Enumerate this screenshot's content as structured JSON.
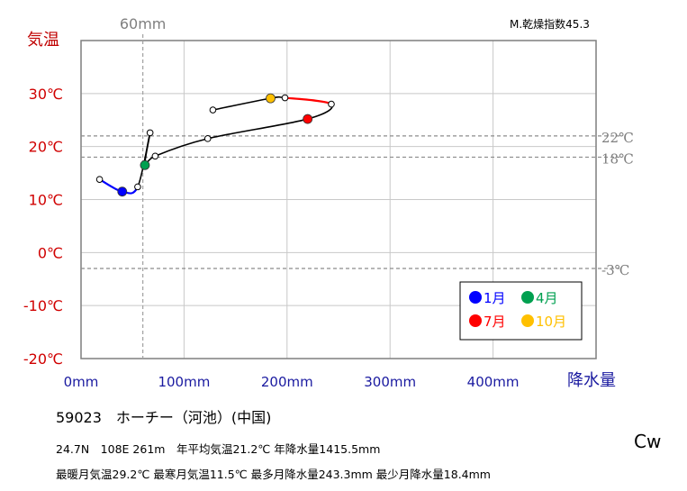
{
  "station": {
    "title": "59023　ホーチー（河池）(中国)",
    "line1": "24.7N　108E 261m　年平均気温21.2℃ 年降水量1415.5mm",
    "line2": "最暖月気温29.2℃ 最寒月気温11.5℃ 最多月降水量243.3mm 最少月降水量18.4mm",
    "climate_class": "Cw",
    "aridity": "M.乾燥指数45.3"
  },
  "chart_data": {
    "type": "line",
    "title": "",
    "xlabel": "降水量",
    "ylabel": "気温",
    "xlim": [
      0,
      500
    ],
    "ylim": [
      -20,
      40
    ],
    "x_ticks": [
      {
        "value": 0,
        "label": "0mm"
      },
      {
        "value": 100,
        "label": "100mm"
      },
      {
        "value": 200,
        "label": "200mm"
      },
      {
        "value": 300,
        "label": "300mm"
      },
      {
        "value": 400,
        "label": "400mm"
      }
    ],
    "y_ticks": [
      {
        "value": 30,
        "label": "30℃"
      },
      {
        "value": 20,
        "label": "20℃"
      },
      {
        "value": 10,
        "label": "10℃"
      },
      {
        "value": 0,
        "label": "0℃"
      },
      {
        "value": -10,
        "label": "-10℃"
      },
      {
        "value": -20,
        "label": "-20℃"
      }
    ],
    "grid": true,
    "reference_lines": [
      {
        "axis": "y",
        "value": 22,
        "label": "22℃"
      },
      {
        "axis": "y",
        "value": 18,
        "label": "18℃"
      },
      {
        "axis": "y",
        "value": -3,
        "label": "-3℃"
      },
      {
        "axis": "x",
        "value": 60,
        "label": "60mm"
      }
    ],
    "series": [
      {
        "x": [
          40,
          55,
          18,
          62,
          72,
          123,
          220,
          243,
          198,
          184,
          128,
          67
        ],
        "y": [
          11.5,
          12.4,
          13.8,
          16.5,
          18.2,
          21.5,
          25.2,
          28.0,
          29.2,
          29.1,
          26.9,
          22.6
        ],
        "months": [
          1,
          2,
          3,
          4,
          5,
          6,
          7,
          8,
          9,
          10,
          11,
          12
        ]
      }
    ],
    "sample_order": [
      3,
      1,
      2,
      12,
      4,
      5,
      6,
      7,
      8,
      9,
      10,
      11
    ],
    "highlight_months": [
      {
        "month": 1,
        "color": "#0000ff"
      },
      {
        "month": 4,
        "color": "#00a050"
      },
      {
        "month": 7,
        "color": "#ff0000"
      },
      {
        "month": 10,
        "color": "#ffc000"
      }
    ],
    "legend": {
      "position": "bottom-right",
      "entries": [
        {
          "label": "1月",
          "color": "#0000ff"
        },
        {
          "label": "4月",
          "color": "#00a050"
        },
        {
          "label": "7月",
          "color": "#ff0000"
        },
        {
          "label": "10月",
          "color": "#ffc000"
        }
      ]
    }
  }
}
